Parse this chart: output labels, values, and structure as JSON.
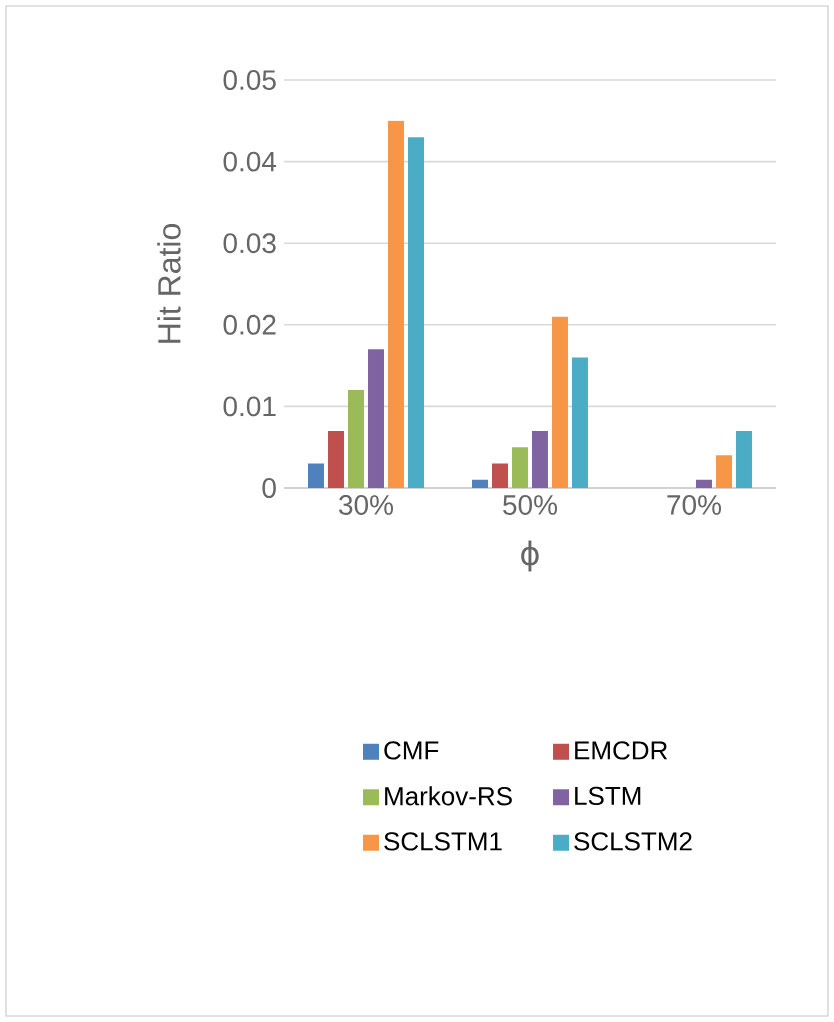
{
  "chart_data": {
    "type": "bar",
    "xlabel": "ϕ",
    "ylabel": "Hit Ratio",
    "categories": [
      "30%",
      "50%",
      "70%"
    ],
    "series": [
      {
        "name": "CMF",
        "color": "#4f81bd",
        "values": [
          0.003,
          0.001,
          0
        ]
      },
      {
        "name": "EMCDR",
        "color": "#c0504d",
        "values": [
          0.007,
          0.003,
          0
        ]
      },
      {
        "name": "Markov-RS",
        "color": "#9bbb59",
        "values": [
          0.012,
          0.005,
          0
        ]
      },
      {
        "name": "LSTM",
        "color": "#8064a2",
        "values": [
          0.017,
          0.007,
          0.001
        ]
      },
      {
        "name": "SCLSTM1",
        "color": "#f79646",
        "values": [
          0.045,
          0.021,
          0.004
        ]
      },
      {
        "name": "SCLSTM2",
        "color": "#4bacc6",
        "values": [
          0.043,
          0.016,
          0.007
        ]
      }
    ],
    "ylim": [
      0,
      0.05
    ],
    "yticks": [
      0,
      0.01,
      0.02,
      0.03,
      0.04,
      0.05
    ],
    "grid": "y",
    "legend": "bottom"
  }
}
